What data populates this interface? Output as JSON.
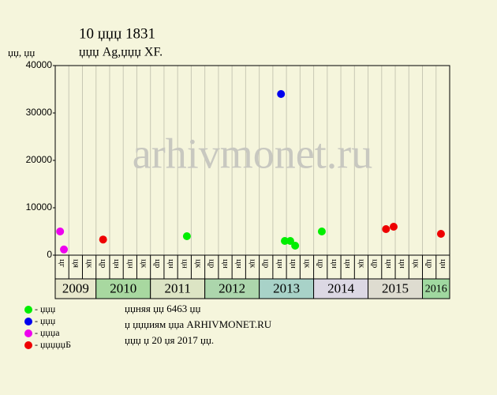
{
  "chart_data": {
    "type": "scatter",
    "title": "10 џџџ 1831",
    "subtitle": "џџџ Ag,џџџ XF.",
    "y_label": "џџ, џџ",
    "watermark": "arhivmonet.ru",
    "xlim": [
      2009.25,
      2016.5
    ],
    "ylim": [
      0,
      40000
    ],
    "yticks": [
      0,
      10000,
      20000,
      30000,
      40000
    ],
    "grid": true,
    "years": [
      2009,
      2010,
      2011,
      2012,
      2013,
      2014,
      2015,
      2016
    ],
    "year_colors": [
      "#e8e8cc",
      "#a8d8a0",
      "#dce4c4",
      "#acd6ac",
      "#a8d2c8",
      "#dcd8e4",
      "#dedcd0",
      "#a0d8a0"
    ],
    "quarter_labels": [
      "цг",
      "ця",
      "цк",
      "цр",
      "цн",
      "цн",
      "цк",
      "цр",
      "цн",
      "цн",
      "цк",
      "цр",
      "цн",
      "цн",
      "цк",
      "цр",
      "цн",
      "цн",
      "цк",
      "цр",
      "цн",
      "цн",
      "цк",
      "цр",
      "цн",
      "цн",
      "цк",
      "цр",
      "цн"
    ],
    "series": [
      {
        "name": "- џџџ",
        "color": "#00ee00",
        "x": [
          2011.67,
          2013.47,
          2013.57,
          2013.66,
          2014.15
        ],
        "values": [
          4000,
          3000,
          3000,
          2000,
          5000
        ]
      },
      {
        "name": "- џџџ",
        "color": "#0000ee",
        "x": [
          2013.4
        ],
        "values": [
          34000
        ]
      },
      {
        "name": "- џџџа",
        "color": "#ee00ee",
        "x": [
          2009.34,
          2009.41
        ],
        "values": [
          5000,
          1200
        ]
      },
      {
        "name": "- џџџџџБ",
        "color": "#ee0000",
        "x": [
          2010.13,
          2015.33,
          2015.47,
          2016.34
        ],
        "values": [
          3300,
          5500,
          6000,
          4500
        ]
      }
    ],
    "notes": [
      "џџняя џџ 6463 џџ",
      "џ џџџиям џџа ARHIVMONET.RU",
      "џџџ џ 20 џя 2017 џџ."
    ]
  }
}
